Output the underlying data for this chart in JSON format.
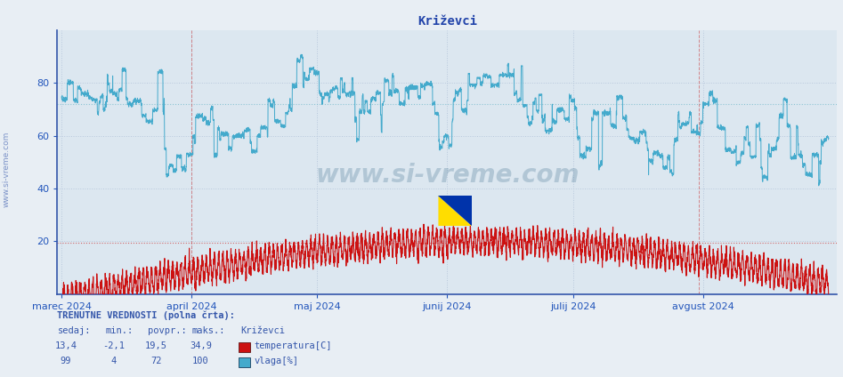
{
  "title": "Križevci",
  "background_color": "#e8eef4",
  "plot_bg_color": "#dce7f0",
  "axis_color": "#3355aa",
  "grid_color": "#b8c8dc",
  "temp_color": "#cc1111",
  "vlaga_color": "#44aacc",
  "temp_avg": 19.5,
  "vlaga_avg": 72.0,
  "temp_dashed_color": "#cc4444",
  "vlaga_dashed_color": "#77bbcc",
  "ylim": [
    0,
    100
  ],
  "yticks": [
    20,
    40,
    60,
    80
  ],
  "months": [
    "marec 2024",
    "april 2024",
    "maj 2024",
    "junij 2024",
    "julij 2024",
    "avgust 2024"
  ],
  "total_points": 8760,
  "watermark": "www.si-vreme.com",
  "legend_items": [
    "temperatura[C]",
    "vlaga[%]"
  ],
  "info_label": "TRENUTNE VREDNOSTI (polna črta):",
  "headers": [
    "sedaj:",
    "min.:",
    "povpr.:",
    "maks.:",
    "Križevci"
  ],
  "temp_row": [
    "13,4",
    "-2,1",
    "19,5",
    "34,9"
  ],
  "vlaga_row": [
    "99",
    "4",
    "72",
    "100"
  ],
  "title_color": "#2244aa",
  "title_fontsize": 10,
  "tick_color": "#2255bb",
  "tick_fontsize": 8,
  "month_fontsize": 8,
  "red_vert_days": [
    31,
    152,
    213,
    274
  ]
}
